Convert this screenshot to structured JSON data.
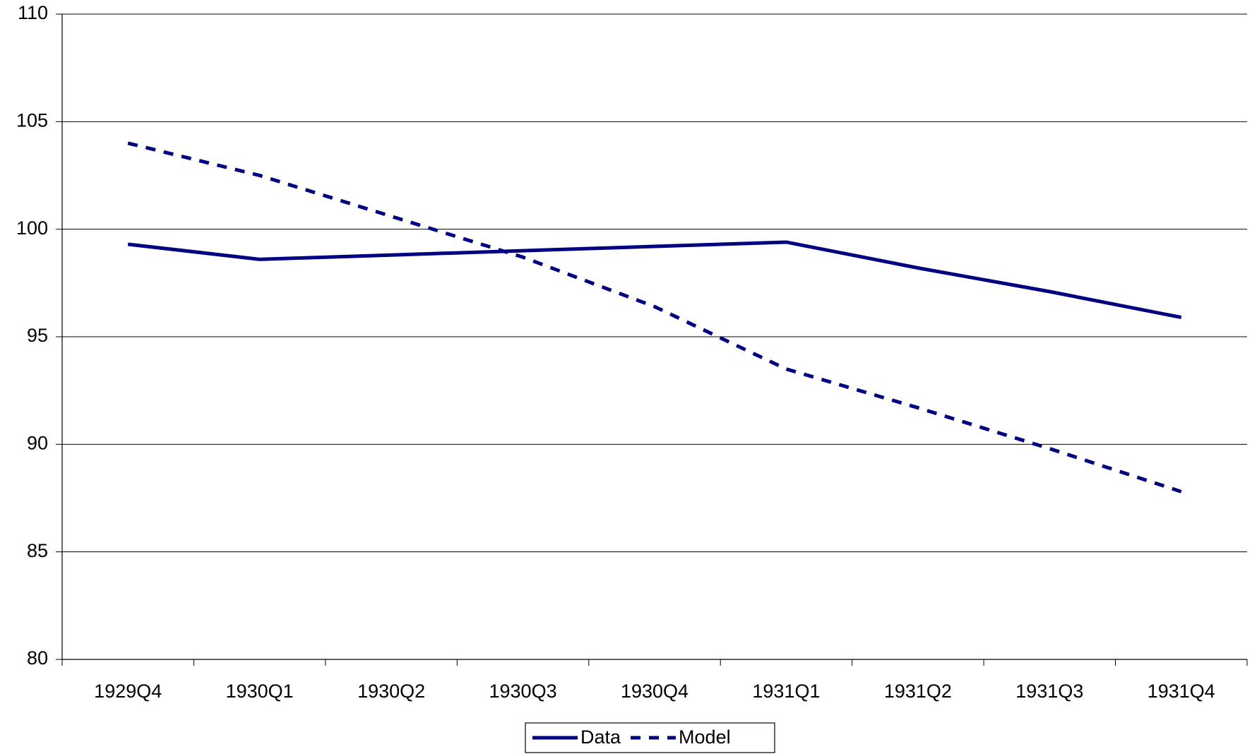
{
  "chart_data": {
    "type": "line",
    "categories": [
      "1929Q4",
      "1930Q1",
      "1930Q2",
      "1930Q3",
      "1930Q4",
      "1931Q1",
      "1931Q2",
      "1931Q3",
      "1931Q4"
    ],
    "series": [
      {
        "name": "Data",
        "color": "#000080",
        "style": "solid",
        "values": [
          99.3,
          98.6,
          98.8,
          99.0,
          99.2,
          99.4,
          98.2,
          97.1,
          95.9
        ]
      },
      {
        "name": "Model",
        "color": "#000080",
        "style": "dashed",
        "values": [
          104.0,
          102.5,
          100.6,
          98.7,
          96.4,
          93.5,
          91.7,
          89.8,
          87.8
        ]
      }
    ],
    "ylim": [
      80,
      110
    ],
    "yticks": [
      80,
      85,
      90,
      95,
      100,
      105,
      110
    ],
    "grid": true,
    "legend": "bottom"
  }
}
